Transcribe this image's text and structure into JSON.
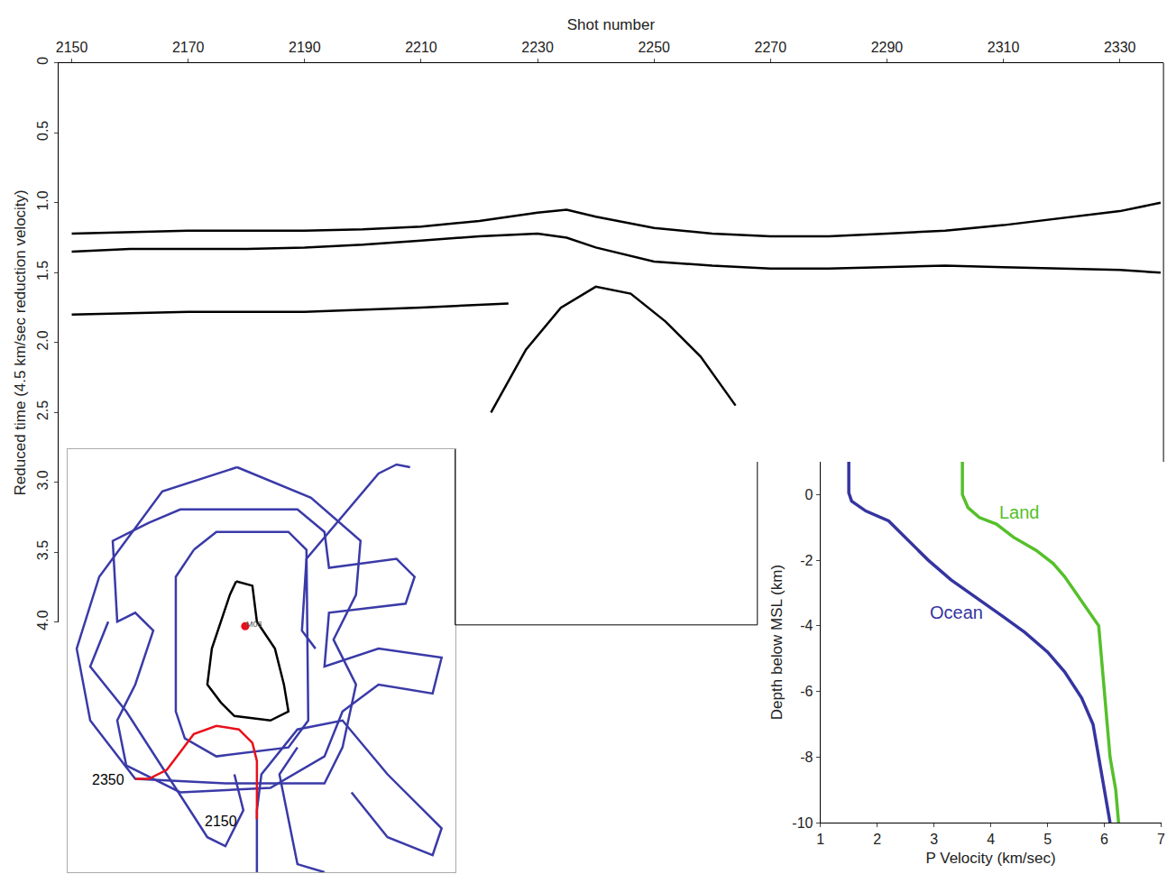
{
  "chart_data": [
    {
      "type": "line",
      "x_label": "Shot number",
      "y_label": "Reduced time (4.5 km/sec reduction velocity)",
      "xlim": [
        2147.7,
        2337.5
      ],
      "xticks": [
        2150,
        2170,
        2190,
        2210,
        2230,
        2250,
        2270,
        2290,
        2310,
        2330
      ],
      "ylim": [
        0,
        4
      ],
      "yticks": [
        0,
        0.5,
        {
          "value": 1,
          "label": "1.0"
        },
        1.5,
        {
          "value": 2,
          "label": "2.0"
        },
        2.5,
        {
          "value": 3,
          "label": "3.0"
        },
        3.5,
        {
          "value": 4,
          "label": "4.0"
        }
      ],
      "grid": false,
      "series": [
        {
          "color": "#000000",
          "x": [
            2150,
            2160,
            2170,
            2180,
            2190,
            2200,
            2210,
            2220,
            2230,
            2235,
            2240,
            2250,
            2260,
            2270,
            2280,
            2290,
            2300,
            2310,
            2320,
            2330,
            2337
          ],
          "values": [
            1.22,
            1.21,
            1.2,
            1.2,
            1.2,
            1.19,
            1.17,
            1.13,
            1.07,
            1.05,
            1.1,
            1.18,
            1.22,
            1.24,
            1.24,
            1.22,
            1.2,
            1.16,
            1.11,
            1.06,
            1.0
          ]
        },
        {
          "color": "#000000",
          "x": [
            2150,
            2160,
            2170,
            2180,
            2190,
            2200,
            2210,
            2220,
            2230,
            2235,
            2240,
            2250,
            2260,
            2270,
            2280,
            2290,
            2300,
            2310,
            2320,
            2330,
            2337
          ],
          "values": [
            1.35,
            1.33,
            1.33,
            1.33,
            1.32,
            1.3,
            1.27,
            1.24,
            1.22,
            1.25,
            1.32,
            1.42,
            1.45,
            1.47,
            1.47,
            1.46,
            1.45,
            1.46,
            1.47,
            1.48,
            1.5
          ]
        },
        {
          "color": "#000000",
          "x": [
            2150,
            2170,
            2190,
            2210,
            2225
          ],
          "values": [
            1.8,
            1.78,
            1.78,
            1.75,
            1.72
          ]
        },
        {
          "color": "#000000",
          "x": [
            2222,
            2228,
            2234,
            2240,
            2246,
            2252,
            2258,
            2264
          ],
          "values": [
            2.5,
            2.05,
            1.75,
            1.6,
            1.65,
            1.85,
            2.1,
            2.45
          ]
        }
      ]
    },
    {
      "type": "line",
      "tick_labels": false,
      "xlim": [
        0,
        430
      ],
      "ylim": [
        0,
        471
      ],
      "series": [
        {
          "color": "#3a3aa8",
          "x": [
            188,
            270,
            325,
            320,
            295,
            320,
            305,
            285,
            175,
            75,
            25,
            10,
            35,
            105,
            188
          ],
          "values": [
            451,
            417,
            369,
            309,
            259,
            209,
            139,
            99,
            99,
            104,
            169,
            249,
            329,
            424,
            451
          ]
        },
        {
          "color": "#3a3aa8",
          "x": [
            140,
            165,
            245,
            265,
            267,
            245,
            165,
            130,
            120,
            120,
            140
          ],
          "values": [
            359,
            379,
            379,
            359,
            169,
            139,
            129,
            149,
            179,
            329,
            359
          ]
        },
        {
          "color": "#3a3aa8",
          "x": [
            90,
            125,
            255,
            285,
            290,
            365,
            385,
            375,
            290,
            285,
            345,
            415,
            405,
            345,
            305,
            285,
            225,
            125,
            65,
            55,
            75,
            95,
            75,
            55,
            50,
            90
          ],
          "values": [
            389,
            404,
            404,
            379,
            339,
            349,
            329,
            299,
            289,
            229,
            249,
            239,
            199,
            209,
            179,
            129,
            94,
            89,
            119,
            169,
            209,
            269,
            289,
            279,
            369,
            389
          ]
        },
        {
          "color": "#3a3aa8",
          "x": [
            380,
            365,
            345,
            265,
            260,
            275
          ],
          "values": [
            451,
            454,
            444,
            349,
            269,
            249
          ]
        },
        {
          "color": "#3a3aa8",
          "x": [
            210,
            210,
            215,
            255,
            305,
            355,
            415,
            405,
            355,
            315
          ],
          "values": [
            0,
            69,
            109,
            159,
            169,
            109,
            49,
            19,
            39,
            89
          ]
        },
        {
          "color": "#3a3aa8",
          "x": [
            45,
            25,
            65,
            155,
            175,
            195,
            185
          ],
          "values": [
            279,
            229,
            179,
            39,
            29,
            69,
            109
          ]
        },
        {
          "color": "#3a3aa8",
          "x": [
            255,
            235,
            255,
            285
          ],
          "values": [
            139,
            109,
            9,
            0
          ]
        },
        {
          "color": "#000000",
          "x": [
            187,
            205,
            210,
            230,
            240,
            245,
            225,
            185,
            170,
            155,
            160,
            170,
            180,
            187
          ],
          "values": [
            324,
            319,
            279,
            249,
            209,
            179,
            169,
            174,
            189,
            209,
            249,
            279,
            309,
            324
          ]
        },
        {
          "color": "#e8101a",
          "x": [
            210,
            210,
            205,
            190,
            165,
            140,
            125,
            110,
            90,
            75
          ],
          "values": [
            59,
            124,
            144,
            159,
            163,
            154,
            134,
            114,
            104,
            104
          ]
        },
        {
          "color": "#e8101a",
          "marker": "circle",
          "x": [
            197
          ],
          "values": [
            274
          ]
        }
      ],
      "annotations": [
        {
          "text": "2350",
          "x": 45,
          "y": 103,
          "color": "#000000"
        },
        {
          "text": "2150",
          "x": 170,
          "y": 57,
          "color": "#000000"
        },
        {
          "text": "M08",
          "x": 207,
          "y": 276,
          "color": "#555555"
        }
      ]
    },
    {
      "type": "line",
      "x_label": "P Velocity (km/sec)",
      "y_label": "Depth below MSL (km)",
      "xlim": [
        1,
        7
      ],
      "xticks": [
        1,
        2,
        3,
        4,
        5,
        6,
        7
      ],
      "ylim": [
        -10,
        1
      ],
      "yticks": [
        0,
        -2,
        -4,
        -6,
        -8,
        -10
      ],
      "grid": false,
      "series": [
        {
          "color": "#3535a0",
          "x": [
            1.5,
            1.5,
            1.55,
            1.8,
            2.2,
            2.5,
            2.9,
            3.3,
            3.8,
            4.2,
            4.6,
            5.0,
            5.3,
            5.6,
            5.8,
            5.9,
            6.0,
            6.1
          ],
          "values": [
            1,
            0.05,
            -0.2,
            -0.5,
            -0.8,
            -1.3,
            -2.0,
            -2.6,
            -3.2,
            -3.7,
            -4.2,
            -4.8,
            -5.4,
            -6.2,
            -7.0,
            -8.0,
            -9.0,
            -10
          ]
        },
        {
          "color": "#55c02a",
          "x": [
            3.5,
            3.5,
            3.6,
            3.8,
            4.1,
            4.4,
            4.8,
            5.1,
            5.3,
            5.5,
            5.7,
            5.9,
            5.95,
            6.0,
            6.05,
            6.1,
            6.2,
            6.25
          ],
          "values": [
            1,
            0,
            -0.4,
            -0.7,
            -0.9,
            -1.3,
            -1.7,
            -2.1,
            -2.5,
            -3.0,
            -3.5,
            -4.0,
            -5,
            -6,
            -7,
            -8,
            -9,
            -10
          ]
        }
      ],
      "annotations": [
        {
          "text": "Land",
          "x": 4.5,
          "y": -0.55,
          "color": "#55c02a"
        },
        {
          "text": "Ocean",
          "x": 3.4,
          "y": -3.6,
          "color": "#3535a0"
        }
      ]
    }
  ]
}
